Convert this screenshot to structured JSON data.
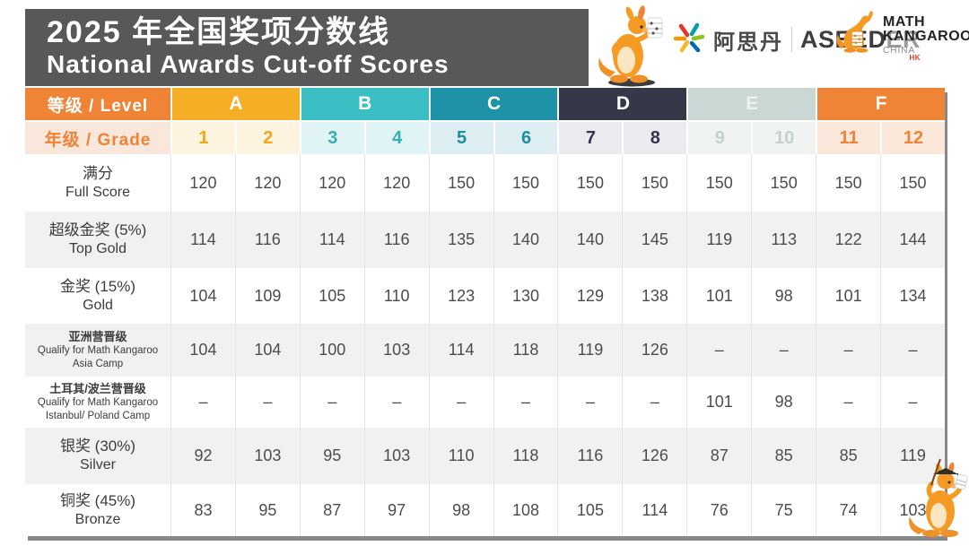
{
  "title": {
    "zh": "2025 年全国奖项分数线",
    "en": "National Awards Cut-off Scores"
  },
  "logos": {
    "asdan": {
      "name_zh": "阿思丹",
      "brand_bold": "ASEED",
      "brand_light": "ER",
      "hk": "HK"
    },
    "math_kangaroo": {
      "line1": "MATH",
      "line2": "KANGAROO",
      "line3": "CHINA"
    }
  },
  "colors": {
    "title_bg": "#58585A",
    "header_orange": "#EF8336",
    "shaded_row": "#F1F1F1"
  },
  "table": {
    "level_header_label": "等级 / Level",
    "grade_header_label": "年级 / Grade",
    "level_label_bg": "#EF8336",
    "grade_label_bg": "#FAE7DB",
    "grade_label_color": "#EF8336",
    "levels": [
      {
        "label": "A",
        "color": "#F6AE27",
        "text_color": "#FFFFFF",
        "tint": "#FDF3DE",
        "num_color": "#EFA81C",
        "grades": [
          "1",
          "2"
        ]
      },
      {
        "label": "B",
        "color": "#3BBFC5",
        "text_color": "#FFFFFF",
        "tint": "#E1F4F5",
        "num_color": "#36AEB7",
        "grades": [
          "3",
          "4"
        ]
      },
      {
        "label": "C",
        "color": "#1E92A7",
        "text_color": "#FFFFFF",
        "tint": "#DDEEF2",
        "num_color": "#1D8CA2",
        "grades": [
          "5",
          "6"
        ]
      },
      {
        "label": "D",
        "color": "#363849",
        "text_color": "#FFFFFF",
        "tint": "#EAEAEF",
        "num_color": "#33354A",
        "grades": [
          "7",
          "8"
        ]
      },
      {
        "label": "E",
        "color": "#CBD7D5",
        "text_color": "#EDF2F0",
        "tint": "#EFF3F2",
        "num_color": "#C6D0CF",
        "grades": [
          "9",
          "10"
        ]
      },
      {
        "label": "F",
        "color": "#EF8336",
        "text_color": "#FFFFFF",
        "tint": "#FBE8DA",
        "num_color": "#EF8336",
        "grades": [
          "11",
          "12"
        ]
      }
    ]
  },
  "chart_data": {
    "type": "table",
    "title": "2025 年全国奖项分数线 National Awards Cut-off Scores",
    "column_groups": [
      "A",
      "B",
      "C",
      "D",
      "E",
      "F"
    ],
    "columns": [
      "1",
      "2",
      "3",
      "4",
      "5",
      "6",
      "7",
      "8",
      "9",
      "10",
      "11",
      "12"
    ],
    "rows": [
      {
        "label_zh": "满分",
        "label_en": "Full Score",
        "small": false,
        "values": [
          120,
          120,
          120,
          120,
          150,
          150,
          150,
          150,
          150,
          150,
          150,
          150
        ]
      },
      {
        "label_zh": "超级金奖 (5%)",
        "label_en": "Top Gold",
        "small": false,
        "values": [
          114,
          116,
          114,
          116,
          135,
          140,
          140,
          145,
          119,
          113,
          122,
          144
        ]
      },
      {
        "label_zh": "金奖 (15%)",
        "label_en": "Gold",
        "small": false,
        "values": [
          104,
          109,
          105,
          110,
          123,
          130,
          129,
          138,
          101,
          98,
          101,
          134
        ]
      },
      {
        "label_zh": "亚洲营晋级",
        "label_en": "Qualify for Math Kangaroo",
        "label_en2": "Asia Camp",
        "small": true,
        "values": [
          104,
          104,
          100,
          103,
          114,
          118,
          119,
          126,
          "–",
          "–",
          "–",
          "–"
        ]
      },
      {
        "label_zh": "土耳其/波兰营晋级",
        "label_en": "Qualify for Math Kangaroo",
        "label_en2": "Istanbul/ Poland Camp",
        "small": true,
        "values": [
          "–",
          "–",
          "–",
          "–",
          "–",
          "–",
          "–",
          "–",
          101,
          98,
          "–",
          "–"
        ]
      },
      {
        "label_zh": "银奖 (30%)",
        "label_en": "Silver",
        "small": false,
        "values": [
          92,
          103,
          95,
          103,
          110,
          118,
          116,
          126,
          87,
          85,
          85,
          119
        ]
      },
      {
        "label_zh": "铜奖 (45%)",
        "label_en": "Bronze",
        "small": false,
        "values": [
          83,
          95,
          87,
          97,
          98,
          108,
          105,
          114,
          76,
          75,
          74,
          103
        ]
      }
    ]
  }
}
